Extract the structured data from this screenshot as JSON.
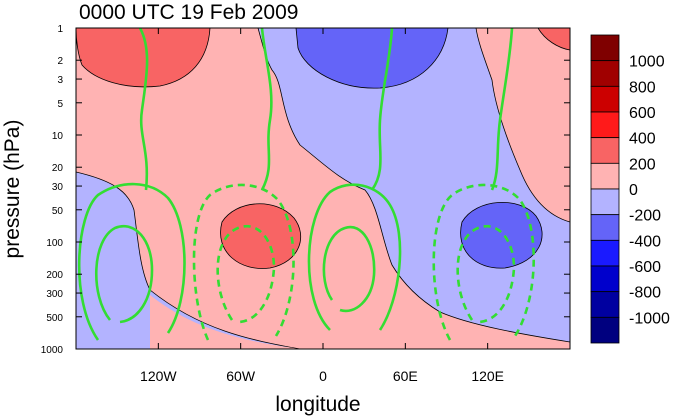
{
  "chart_data": {
    "type": "contour",
    "title": "0000 UTC 19 Feb 2009",
    "xlabel": "longitude",
    "ylabel": "pressure (hPa)",
    "xlim": [
      -180,
      180
    ],
    "ylim": [
      1000,
      1
    ],
    "y_scale": "log",
    "x_ticks": [
      {
        "value": -120,
        "label": "120W"
      },
      {
        "value": -60,
        "label": "60W"
      },
      {
        "value": 0,
        "label": "0"
      },
      {
        "value": 60,
        "label": "60E"
      },
      {
        "value": 120,
        "label": "120E"
      }
    ],
    "y_ticks": [
      {
        "value": 1,
        "label": "1"
      },
      {
        "value": 2,
        "label": "2"
      },
      {
        "value": 3,
        "label": "3"
      },
      {
        "value": 5,
        "label": "5"
      },
      {
        "value": 10,
        "label": "10"
      },
      {
        "value": 20,
        "label": "20"
      },
      {
        "value": 30,
        "label": "30"
      },
      {
        "value": 50,
        "label": "50"
      },
      {
        "value": 100,
        "label": "100"
      },
      {
        "value": 200,
        "label": "200"
      },
      {
        "value": 300,
        "label": "300"
      },
      {
        "value": 500,
        "label": "500"
      },
      {
        "value": 1000,
        "label": "1000"
      }
    ],
    "colorbar": {
      "levels": [
        {
          "label": "1000",
          "color": "#7f0000"
        },
        {
          "label": "800",
          "color": "#a00000"
        },
        {
          "label": "600",
          "color": "#cc0000"
        },
        {
          "label": "400",
          "color": "#ff1a1a"
        },
        {
          "label": "200",
          "color": "#f86464"
        },
        {
          "label": "0",
          "color": "#ffb3b3"
        },
        {
          "label": "-200",
          "color": "#b3b3ff"
        },
        {
          "label": "-400",
          "color": "#6464f8"
        },
        {
          "label": "-600",
          "color": "#1a1aff"
        },
        {
          "label": "-800",
          "color": "#0000cc"
        },
        {
          "label": "-1000",
          "color": "#0000a0"
        }
      ],
      "bottom_color": "#00007f"
    },
    "overlay_contours": {
      "color": "#33dd33",
      "positive_style": "solid",
      "negative_style": "dashed"
    },
    "outline_color": "#000000"
  }
}
